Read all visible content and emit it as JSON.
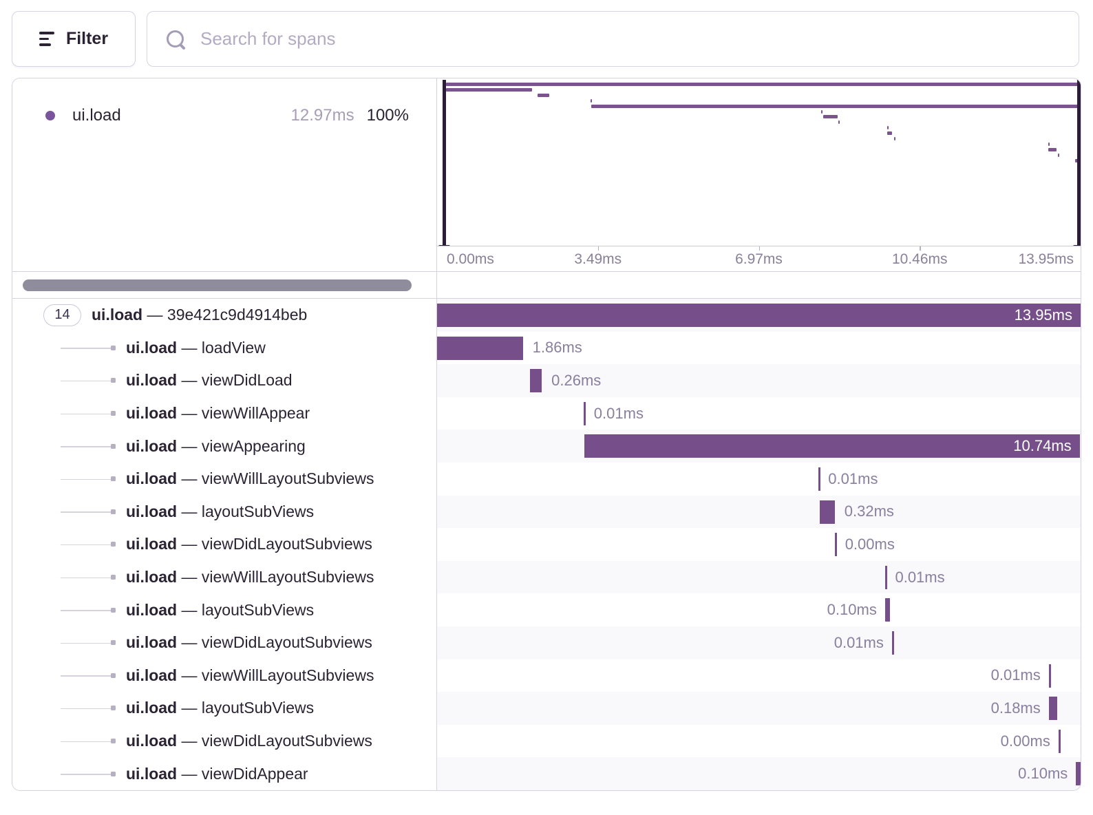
{
  "toolbar": {
    "filter_label": "Filter",
    "search_placeholder": "Search for spans"
  },
  "legend": {
    "op": "ui.load",
    "duration": "12.97ms",
    "percent": "100%"
  },
  "minimap": {
    "total_ms": 13.95,
    "axis_labels": [
      "0.00ms",
      "3.49ms",
      "6.97ms",
      "10.46ms",
      "13.95ms"
    ],
    "axis_tick_percents": [
      25,
      50,
      75
    ]
  },
  "separator": "—",
  "root_children_count": "14",
  "spans": [
    {
      "op": "ui.load",
      "name": "39e421c9d4914beb",
      "duration_label": "13.95ms",
      "start_ms": 0,
      "duration_ms": 13.95,
      "label_position": "inside",
      "root": true
    },
    {
      "op": "ui.load",
      "name": "loadView",
      "duration_label": "1.86ms",
      "start_ms": 0,
      "duration_ms": 1.86,
      "label_position": "right"
    },
    {
      "op": "ui.load",
      "name": "viewDidLoad",
      "duration_label": "0.26ms",
      "start_ms": 2.01,
      "duration_ms": 0.26,
      "label_position": "right"
    },
    {
      "op": "ui.load",
      "name": "viewWillAppear",
      "duration_label": "0.01ms",
      "start_ms": 3.18,
      "duration_ms": 0.01,
      "label_position": "right"
    },
    {
      "op": "ui.load",
      "name": "viewAppearing",
      "duration_label": "10.74ms",
      "start_ms": 3.19,
      "duration_ms": 10.74,
      "label_position": "inside"
    },
    {
      "op": "ui.load",
      "name": "viewWillLayoutSubviews",
      "duration_label": "0.01ms",
      "start_ms": 8.26,
      "duration_ms": 0.01,
      "label_position": "right"
    },
    {
      "op": "ui.load",
      "name": "layoutSubViews",
      "duration_label": "0.32ms",
      "start_ms": 8.3,
      "duration_ms": 0.32,
      "label_position": "right"
    },
    {
      "op": "ui.load",
      "name": "viewDidLayoutSubviews",
      "duration_label": "0.00ms",
      "start_ms": 8.63,
      "duration_ms": 0.004,
      "label_position": "right"
    },
    {
      "op": "ui.load",
      "name": "viewWillLayoutSubviews",
      "duration_label": "0.01ms",
      "start_ms": 9.71,
      "duration_ms": 0.01,
      "label_position": "right"
    },
    {
      "op": "ui.load",
      "name": "layoutSubViews",
      "duration_label": "0.10ms",
      "start_ms": 9.71,
      "duration_ms": 0.1,
      "label_position": "left"
    },
    {
      "op": "ui.load",
      "name": "viewDidLayoutSubviews",
      "duration_label": "0.01ms",
      "start_ms": 9.86,
      "duration_ms": 0.01,
      "label_position": "left"
    },
    {
      "op": "ui.load",
      "name": "viewWillLayoutSubviews",
      "duration_label": "0.01ms",
      "start_ms": 13.26,
      "duration_ms": 0.01,
      "label_position": "left"
    },
    {
      "op": "ui.load",
      "name": "layoutSubViews",
      "duration_label": "0.18ms",
      "start_ms": 13.26,
      "duration_ms": 0.18,
      "label_position": "left"
    },
    {
      "op": "ui.load",
      "name": "viewDidLayoutSubviews",
      "duration_label": "0.00ms",
      "start_ms": 13.47,
      "duration_ms": 0.004,
      "label_position": "left"
    },
    {
      "op": "ui.load",
      "name": "viewDidAppear",
      "duration_label": "0.10ms",
      "start_ms": 13.85,
      "duration_ms": 0.1,
      "label_position": "left"
    }
  ],
  "colors": {
    "bar": "#764f8a",
    "minimap_bar": "#7b548f",
    "handle": "#2b1d38",
    "alt_row": "#f9f8fb",
    "border": "#d6d1df",
    "text_dark": "#2b2333",
    "text_gray": "#897f9e",
    "legend_dot": "#7a559c"
  }
}
